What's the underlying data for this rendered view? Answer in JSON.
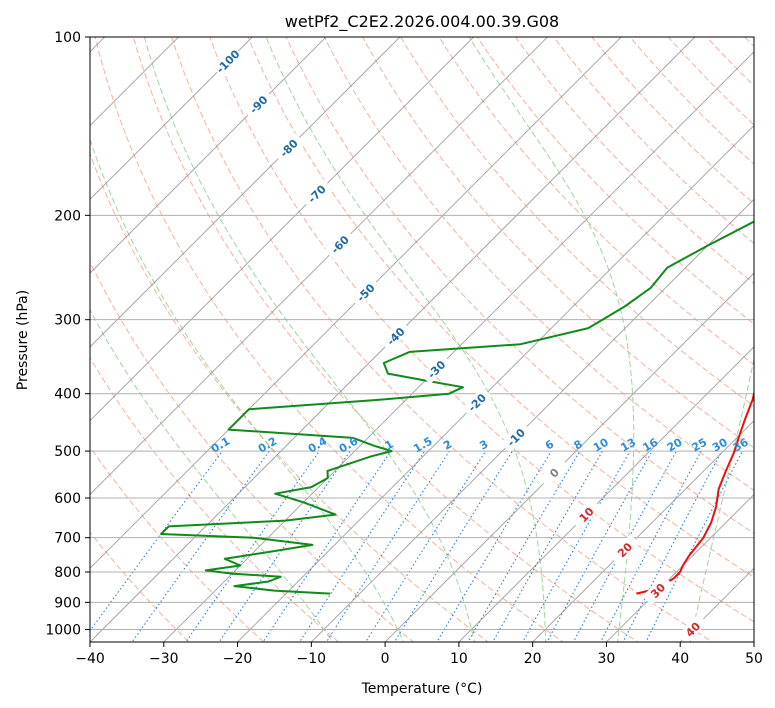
{
  "chart_data": {
    "type": "line",
    "title": "wetPf2_C2E2.2026.004.00.39.G08",
    "xlabel": "Temperature (°C)",
    "ylabel": "Pressure (hPa)",
    "xlim": [
      -40,
      50
    ],
    "ylim": [
      1050,
      100
    ],
    "x_ticks": [
      -40,
      -30,
      -20,
      -10,
      0,
      10,
      20,
      30,
      40,
      50
    ],
    "x_tick_labels": [
      "−40",
      "−30",
      "−20",
      "−10",
      "0",
      "10",
      "20",
      "30",
      "40",
      "50"
    ],
    "y_ticks": [
      1000,
      900,
      800,
      700,
      600,
      500,
      400,
      300,
      200,
      100
    ],
    "y_tick_labels": [
      "1000",
      "900",
      "800",
      "700",
      "600",
      "500",
      "400",
      "300",
      "200",
      "100"
    ],
    "skew": 1.0,
    "colors": {
      "temperature": "#e8110f",
      "dewpoint": "#118a1c",
      "dry_adiabat": "#f2a58a",
      "moist_adiabat": "#8ccf8c",
      "mixing_ratio": "#2f7fd8",
      "isotherm": "#8a8a8a",
      "cold_label": "#1f6aa5",
      "warm_label": "#d62728",
      "mixing_label": "#2a8de0",
      "zero_label": "#7f7f7f"
    },
    "series": [
      {
        "name": "Temperature",
        "points": [
          [
            100,
            9
          ],
          [
            115,
            7.5
          ],
          [
            128,
            7
          ],
          [
            138,
            5
          ],
          [
            148,
            2.5
          ],
          [
            160,
            1
          ],
          [
            185,
            0
          ],
          [
            205,
            0.5
          ],
          [
            230,
            2
          ],
          [
            260,
            4
          ],
          [
            290,
            6.5
          ],
          [
            320,
            9.5
          ],
          [
            350,
            12
          ],
          [
            380,
            15
          ],
          [
            410,
            17
          ],
          [
            440,
            18.5
          ],
          [
            470,
            20
          ],
          [
            500,
            21.5
          ],
          [
            540,
            23
          ],
          [
            580,
            24.5
          ],
          [
            620,
            26.5
          ],
          [
            660,
            28
          ],
          [
            700,
            29
          ],
          [
            750,
            29.5
          ],
          [
            780,
            30
          ],
          [
            800,
            30.5
          ],
          [
            820,
            30.5
          ],
          [
            840,
            30
          ],
          [
            860,
            28.8
          ],
          [
            870,
            27.5
          ]
        ]
      },
      {
        "name": "Dewpoint",
        "points": [
          [
            100,
            -1
          ],
          [
            105,
            -3
          ],
          [
            112,
            -5
          ],
          [
            125,
            -9
          ],
          [
            135,
            -10
          ],
          [
            150,
            -8
          ],
          [
            175,
            -7
          ],
          [
            185,
            -7
          ],
          [
            205,
            -7
          ],
          [
            225,
            -10
          ],
          [
            245,
            -12.5
          ],
          [
            265,
            -12
          ],
          [
            285,
            -13
          ],
          [
            310,
            -15
          ],
          [
            330,
            -22
          ],
          [
            340,
            -36
          ],
          [
            355,
            -38
          ],
          [
            370,
            -36
          ],
          [
            380,
            -30
          ],
          [
            390,
            -24
          ],
          [
            400,
            -25
          ],
          [
            410,
            -34
          ],
          [
            425,
            -50
          ],
          [
            460,
            -50
          ],
          [
            475,
            -32
          ],
          [
            490,
            -28
          ],
          [
            500,
            -25
          ],
          [
            510,
            -27
          ],
          [
            540,
            -31
          ],
          [
            555,
            -30
          ],
          [
            575,
            -31
          ],
          [
            590,
            -35
          ],
          [
            610,
            -30
          ],
          [
            640,
            -24
          ],
          [
            655,
            -30
          ],
          [
            670,
            -45
          ],
          [
            690,
            -45
          ],
          [
            700,
            -32
          ],
          [
            720,
            -23
          ],
          [
            740,
            -28
          ],
          [
            760,
            -33
          ],
          [
            780,
            -30
          ],
          [
            795,
            -34
          ],
          [
            805,
            -30
          ],
          [
            815,
            -23
          ],
          [
            830,
            -24
          ],
          [
            845,
            -28
          ],
          [
            860,
            -22
          ],
          [
            870,
            -14
          ]
        ]
      }
    ],
    "isotherms": [
      -130,
      -120,
      -110,
      -100,
      -90,
      -80,
      -70,
      -60,
      -50,
      -40,
      -30,
      -20,
      -10,
      0,
      10,
      20,
      30,
      40,
      50
    ],
    "dry_adiabats_c": [
      -30,
      -20,
      -10,
      0,
      10,
      20,
      30,
      40,
      50,
      60,
      70,
      80,
      90,
      100,
      110,
      120,
      130,
      140,
      150,
      160,
      170,
      180,
      190,
      200
    ],
    "moist_adiabats_c": [
      -10,
      0,
      10,
      20,
      30,
      40
    ],
    "mixing_ratios": [
      0.1,
      0.2,
      0.4,
      0.6,
      1,
      1.5,
      2,
      3,
      4,
      6,
      8,
      10,
      13,
      16,
      20,
      25,
      30,
      36
    ],
    "mixing_ratio_labels": [
      "0.1",
      "0.2",
      "0.4",
      "0.6",
      "1",
      "1.5",
      "2",
      "3",
      "4",
      "6",
      "8",
      "10",
      "13",
      "16",
      "20",
      "25",
      "30",
      "36"
    ],
    "isotherm_labels": [
      {
        "text": "-100",
        "t": -100
      },
      {
        "text": "-90",
        "t": -90
      },
      {
        "text": "-80",
        "t": -80
      },
      {
        "text": "-70",
        "t": -70
      },
      {
        "text": "-60",
        "t": -60
      },
      {
        "text": "-50",
        "t": -50
      },
      {
        "text": "-40",
        "t": -40
      },
      {
        "text": "-30",
        "t": -30
      },
      {
        "text": "-20",
        "t": -20
      },
      {
        "text": "-10",
        "t": -10
      },
      {
        "text": "0",
        "t": 0
      },
      {
        "text": "10",
        "t": 10
      },
      {
        "text": "20",
        "t": 20
      },
      {
        "text": "30",
        "t": 30
      },
      {
        "text": "40",
        "t": 40
      }
    ]
  }
}
